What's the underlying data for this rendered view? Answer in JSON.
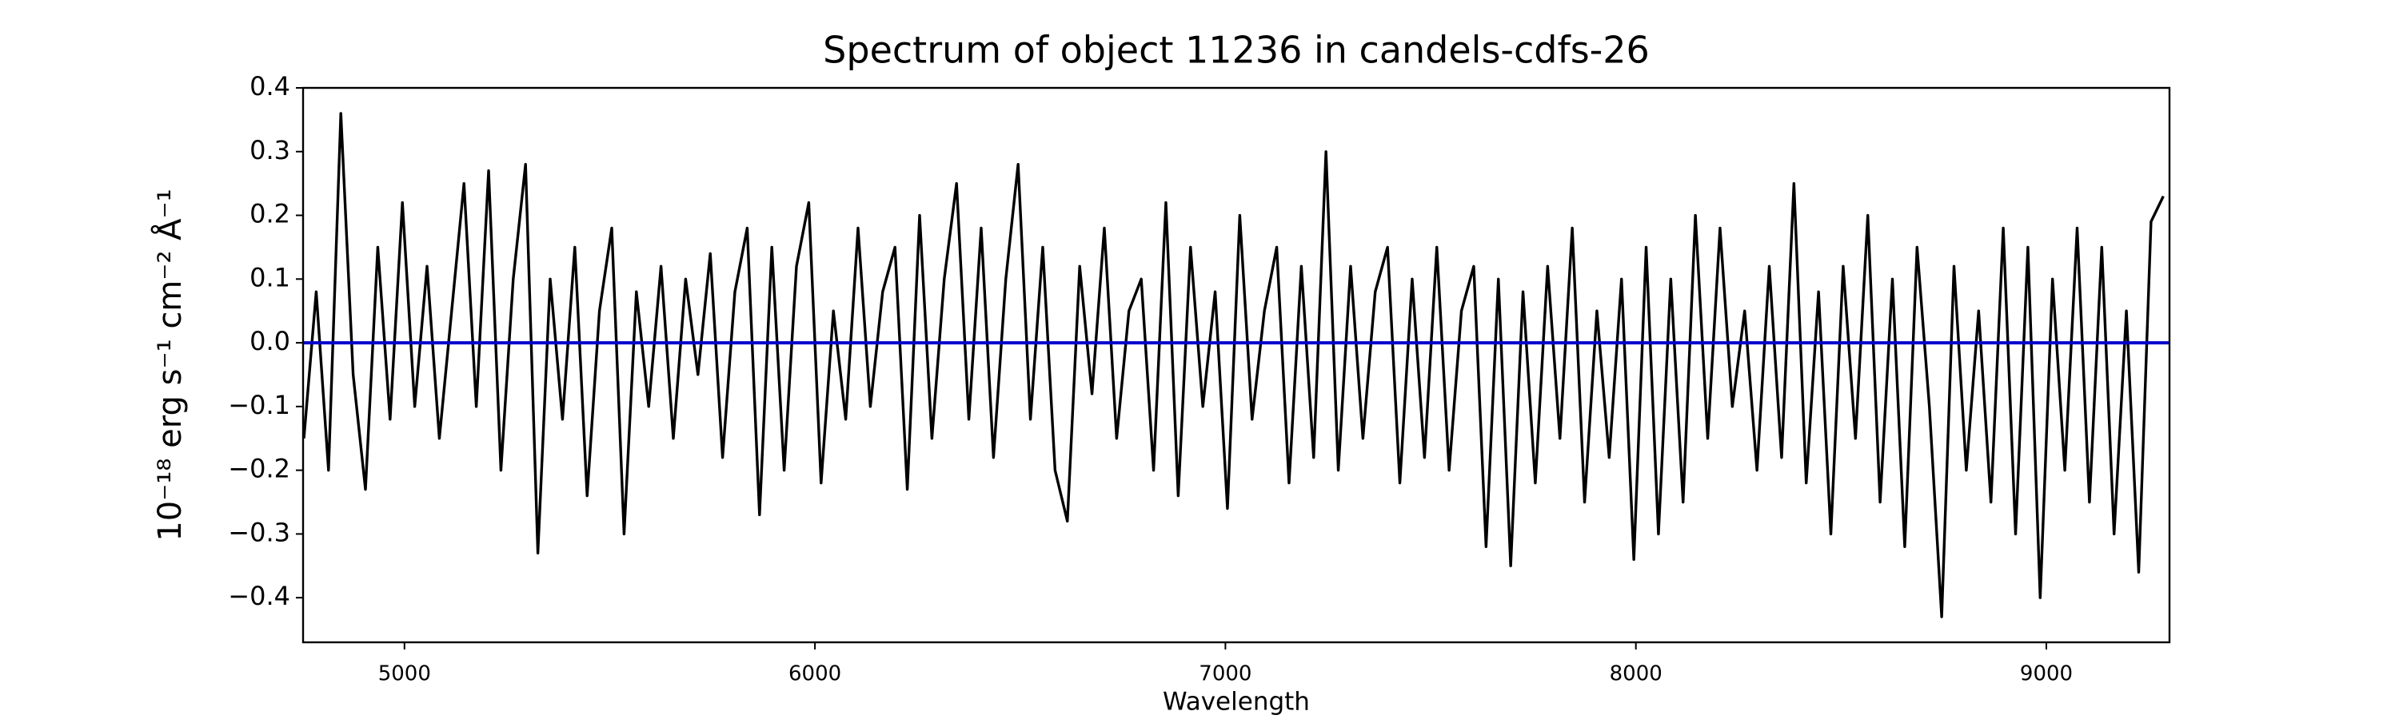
{
  "chart_data": {
    "type": "line",
    "title": "Spectrum of object 11236 in candels-cdfs-26",
    "x_label": "Wavelength",
    "y_label": "10⁻¹⁸ erg s⁻¹ cm⁻² Å⁻¹",
    "xlim": [
      4753,
      9300
    ],
    "ylim": [
      -0.47,
      0.4
    ],
    "xticks": [
      5000,
      6000,
      7000,
      8000,
      9000
    ],
    "yticks": [
      {
        "value": -0.4,
        "label": "−0.4"
      },
      {
        "value": -0.3,
        "label": "−0.3"
      },
      {
        "value": -0.2,
        "label": "−0.2"
      },
      {
        "value": -0.1,
        "label": "−0.1"
      },
      {
        "value": 0,
        "label": "0.0"
      },
      0.1,
      0.2,
      0.3,
      0.4
    ],
    "reference_line": {
      "value": 0,
      "color": "#0000cc"
    },
    "x": [
      4755,
      4785,
      4815,
      4845,
      4875,
      4905,
      4935,
      4965,
      4995,
      5025,
      5055,
      5085,
      5115,
      5145,
      5175,
      5205,
      5235,
      5265,
      5295,
      5325,
      5355,
      5385,
      5415,
      5445,
      5475,
      5505,
      5535,
      5565,
      5595,
      5625,
      5655,
      5685,
      5715,
      5745,
      5775,
      5805,
      5835,
      5865,
      5895,
      5925,
      5955,
      5985,
      6015,
      6045,
      6075,
      6105,
      6135,
      6165,
      6195,
      6225,
      6255,
      6285,
      6315,
      6345,
      6375,
      6405,
      6435,
      6465,
      6495,
      6525,
      6555,
      6585,
      6615,
      6645,
      6675,
      6705,
      6735,
      6765,
      6795,
      6825,
      6855,
      6885,
      6915,
      6945,
      6975,
      7005,
      7035,
      7065,
      7095,
      7125,
      7155,
      7185,
      7215,
      7245,
      7275,
      7305,
      7335,
      7365,
      7395,
      7425,
      7455,
      7485,
      7515,
      7545,
      7575,
      7605,
      7635,
      7665,
      7695,
      7725,
      7755,
      7785,
      7815,
      7845,
      7875,
      7905,
      7935,
      7965,
      7995,
      8025,
      8055,
      8085,
      8115,
      8145,
      8175,
      8205,
      8235,
      8265,
      8295,
      8325,
      8355,
      8385,
      8415,
      8445,
      8475,
      8505,
      8535,
      8565,
      8595,
      8625,
      8655,
      8685,
      8715,
      8745,
      8775,
      8805,
      8835,
      8865,
      8895,
      8925,
      8955,
      8985,
      9015,
      9045,
      9075,
      9105,
      9135,
      9165,
      9195,
      9225,
      9255,
      9285
    ],
    "series": [
      {
        "color": "#000000",
        "values": [
          -0.15,
          0.08,
          -0.2,
          0.36,
          -0.05,
          -0.23,
          0.15,
          -0.12,
          0.22,
          -0.1,
          0.12,
          -0.15,
          0.05,
          0.25,
          -0.1,
          0.27,
          -0.2,
          0.1,
          0.28,
          -0.33,
          0.1,
          -0.12,
          0.15,
          -0.24,
          0.05,
          0.18,
          -0.3,
          0.08,
          -0.1,
          0.12,
          -0.15,
          0.1,
          -0.05,
          0.14,
          -0.18,
          0.08,
          0.18,
          -0.27,
          0.15,
          -0.2,
          0.12,
          0.22,
          -0.22,
          0.05,
          -0.12,
          0.18,
          -0.1,
          0.08,
          0.15,
          -0.23,
          0.2,
          -0.15,
          0.1,
          0.25,
          -0.12,
          0.18,
          -0.18,
          0.1,
          0.28,
          -0.12,
          0.15,
          -0.2,
          -0.28,
          0.12,
          -0.08,
          0.18,
          -0.15,
          0.05,
          0.1,
          -0.2,
          0.22,
          -0.24,
          0.15,
          -0.1,
          0.08,
          -0.26,
          0.2,
          -0.12,
          0.05,
          0.15,
          -0.22,
          0.12,
          -0.18,
          0.3,
          -0.2,
          0.12,
          -0.15,
          0.08,
          0.15,
          -0.22,
          0.1,
          -0.18,
          0.15,
          -0.2,
          0.05,
          0.12,
          -0.32,
          0.1,
          -0.35,
          0.08,
          -0.22,
          0.12,
          -0.15,
          0.18,
          -0.25,
          0.05,
          -0.18,
          0.1,
          -0.34,
          0.15,
          -0.3,
          0.1,
          -0.25,
          0.2,
          -0.15,
          0.18,
          -0.1,
          0.05,
          -0.2,
          0.12,
          -0.18,
          0.25,
          -0.22,
          0.08,
          -0.3,
          0.12,
          -0.15,
          0.2,
          -0.25,
          0.1,
          -0.32,
          0.15,
          -0.1,
          -0.43,
          0.12,
          -0.2,
          0.05,
          -0.25,
          0.18,
          -0.3,
          0.15,
          -0.4,
          0.1,
          -0.2,
          0.18,
          -0.25,
          0.15,
          -0.3,
          0.05,
          -0.36,
          0.19,
          0.23
        ]
      }
    ]
  }
}
